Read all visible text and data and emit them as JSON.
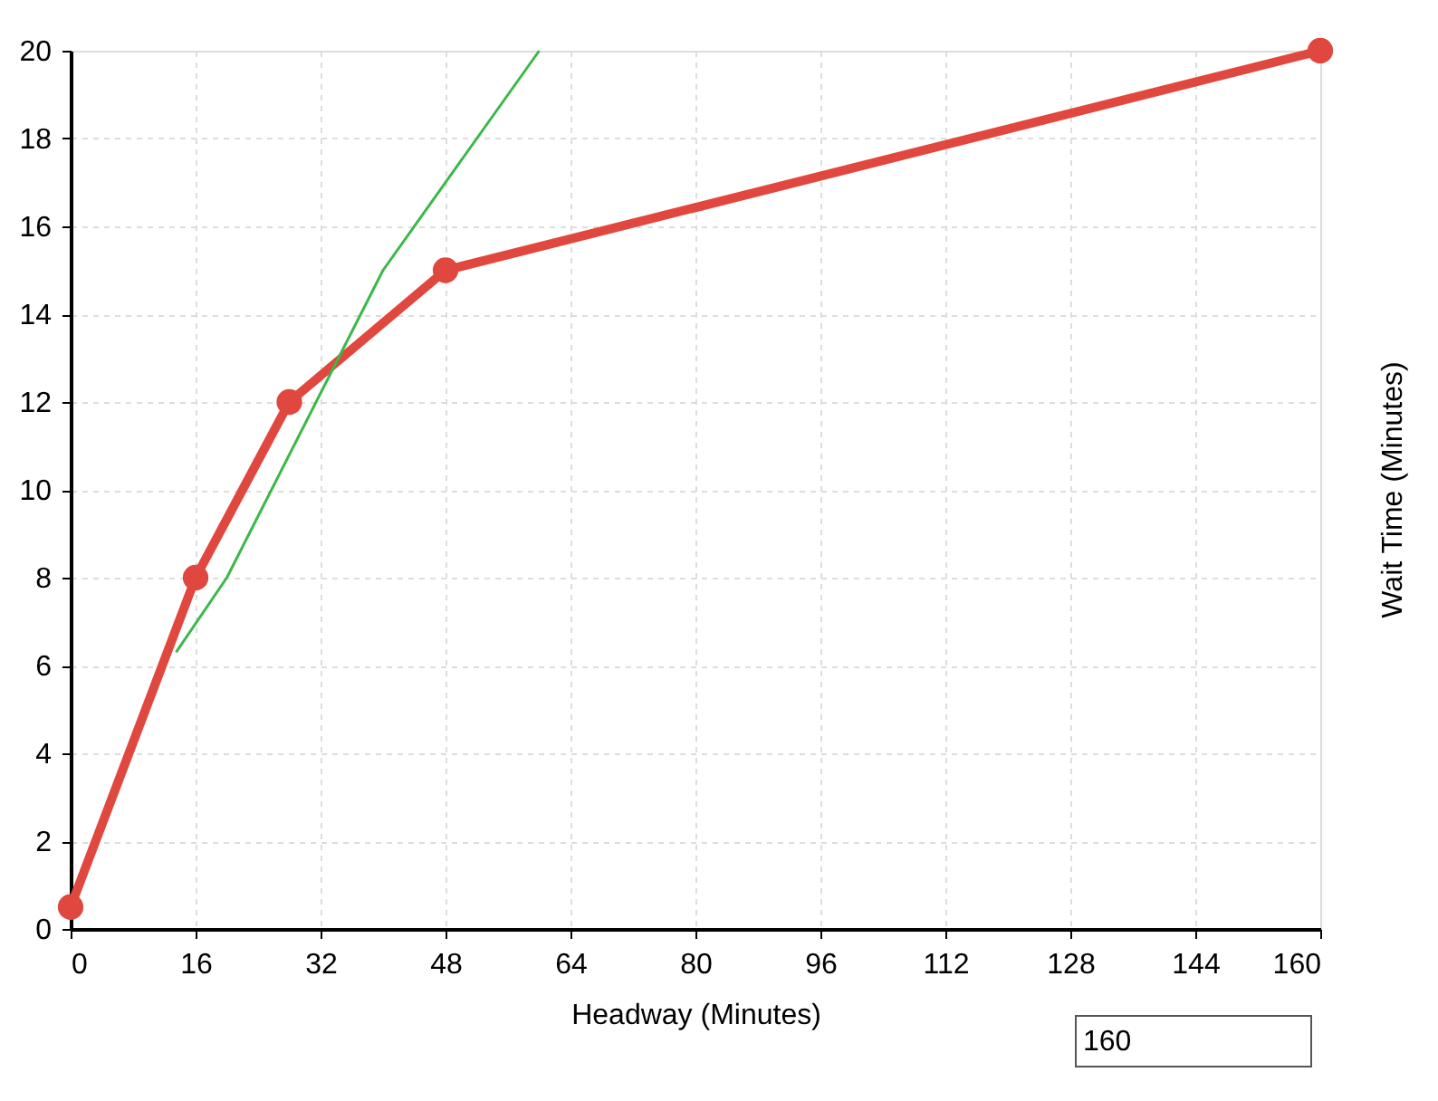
{
  "chart_data": {
    "type": "line",
    "xlabel": "Headway (Minutes)",
    "ylabel": "Wait Time (Minutes)",
    "xlim": [
      0,
      160
    ],
    "xticks": [
      0,
      16,
      32,
      48,
      64,
      80,
      96,
      112,
      128,
      144,
      160
    ],
    "ylim": [
      0,
      20
    ],
    "yticks": [
      0,
      2,
      4,
      6,
      8,
      10,
      12,
      14,
      16,
      18,
      20
    ],
    "grid": true,
    "legend": false,
    "line_style": "solid",
    "series": [
      {
        "color": "#e0483f",
        "x": [
          0,
          16,
          28,
          48,
          160
        ],
        "values": [
          0.5,
          8,
          12,
          15,
          20
        ],
        "marker": "circle"
      },
      {
        "color": "#3cb84a",
        "x": [
          13.5,
          20,
          40,
          60
        ],
        "values": [
          6.3,
          8,
          15,
          20
        ],
        "marker": "none"
      }
    ],
    "annotations": [
      "160"
    ]
  }
}
